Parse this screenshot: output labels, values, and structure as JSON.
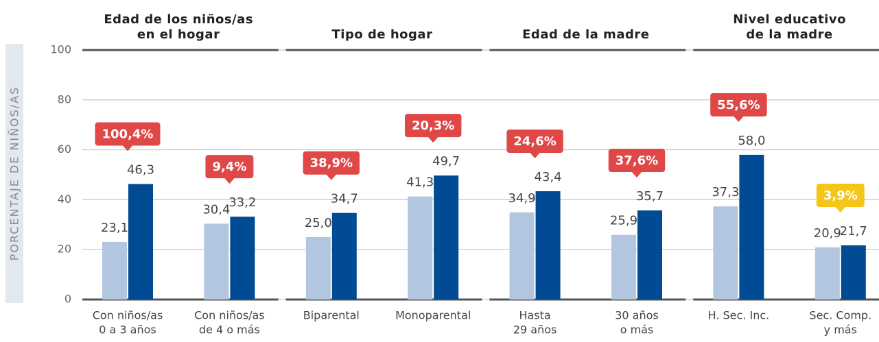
{
  "chart_data": {
    "type": "bar",
    "y_label": "PORCENTAJE DE NIÑOS/AS",
    "groups": [
      {
        "label": [
          "Edad de los niños/as",
          "en el hogar"
        ]
      },
      {
        "label": [
          "Tipo de hogar"
        ]
      },
      {
        "label": [
          "Edad de la madre"
        ]
      },
      {
        "label": [
          "Nivel educativo",
          "de la madre"
        ]
      }
    ],
    "categories": [
      [
        "Con niños/as",
        "0 a 3 años"
      ],
      [
        "Con niños/as",
        "de 4 o más"
      ],
      [
        "Biparental"
      ],
      [
        "Monoparental"
      ],
      [
        "Hasta",
        "29 años"
      ],
      [
        "30 años",
        "o más"
      ],
      [
        "H. Sec. Inc."
      ],
      [
        "Sec. Comp.",
        "y más"
      ]
    ],
    "series": [
      {
        "color": "#b3c6e0",
        "values": [
          23.1,
          30.4,
          25.0,
          41.3,
          34.9,
          25.9,
          37.3,
          20.9
        ],
        "value_labels": [
          "23,1",
          "30,4",
          "25,0",
          "41,3",
          "34,9",
          "25,9",
          "37,3",
          "20,9"
        ]
      },
      {
        "color": "#004b93",
        "values": [
          46.3,
          33.2,
          34.7,
          49.7,
          43.4,
          35.7,
          58.0,
          21.7
        ],
        "value_labels": [
          "46,3",
          "33,2",
          "34,7",
          "49,7",
          "43,4",
          "35,7",
          "58,0",
          "21,7"
        ]
      }
    ],
    "annotations": [
      {
        "text": "100,4%",
        "color": "#e04848"
      },
      {
        "text": "9,4%",
        "color": "#e04848"
      },
      {
        "text": "38,9%",
        "color": "#e04848"
      },
      {
        "text": "20,3%",
        "color": "#e04848"
      },
      {
        "text": "24,6%",
        "color": "#e04848"
      },
      {
        "text": "37,6%",
        "color": "#e04848"
      },
      {
        "text": "55,6%",
        "color": "#e04848"
      },
      {
        "text": "3,9%",
        "color": "#f5c518"
      }
    ],
    "ylim": [
      0,
      100
    ],
    "yticks": [
      0,
      20,
      40,
      60,
      80,
      100
    ],
    "grid": true
  }
}
